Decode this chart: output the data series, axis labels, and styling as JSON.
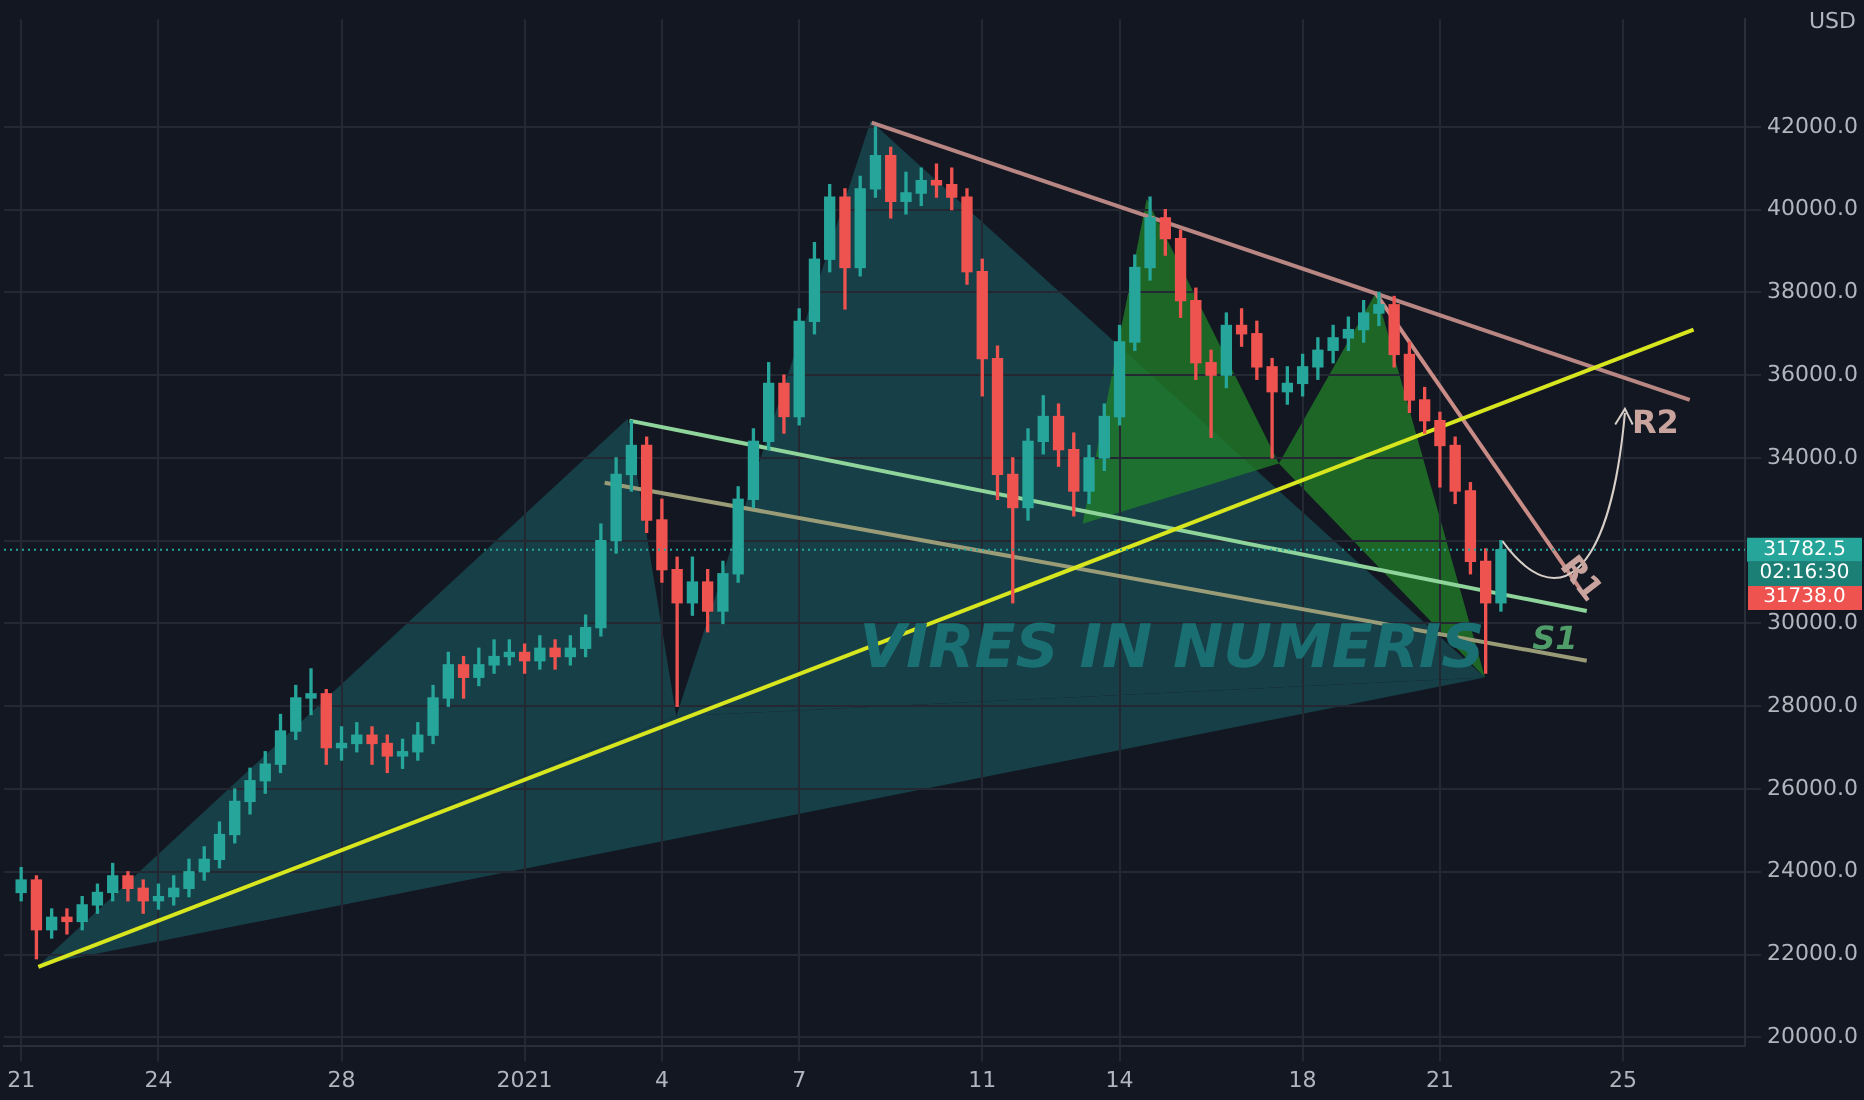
{
  "chart_data": {
    "type": "candlestick",
    "x": [
      "2020-12-21T00:00",
      "2020-12-21T08:00",
      "2020-12-21T16:00",
      "2020-12-22T00:00",
      "2020-12-22T08:00",
      "2020-12-22T16:00",
      "2020-12-23T00:00",
      "2020-12-23T08:00",
      "2020-12-23T16:00",
      "2020-12-24T00:00",
      "2020-12-24T08:00",
      "2020-12-24T16:00",
      "2020-12-25T00:00",
      "2020-12-25T08:00",
      "2020-12-25T16:00",
      "2020-12-26T00:00",
      "2020-12-26T08:00",
      "2020-12-26T16:00",
      "2020-12-27T00:00",
      "2020-12-27T08:00",
      "2020-12-27T16:00",
      "2020-12-28T00:00",
      "2020-12-28T08:00",
      "2020-12-28T16:00",
      "2020-12-29T00:00",
      "2020-12-29T08:00",
      "2020-12-29T16:00",
      "2020-12-30T00:00",
      "2020-12-30T08:00",
      "2020-12-30T16:00",
      "2020-12-31T00:00",
      "2020-12-31T08:00",
      "2020-12-31T16:00",
      "2021-01-01T00:00",
      "2021-01-01T08:00",
      "2021-01-01T16:00",
      "2021-01-02T00:00",
      "2021-01-02T08:00",
      "2021-01-02T16:00",
      "2021-01-03T00:00",
      "2021-01-03T08:00",
      "2021-01-03T16:00",
      "2021-01-04T00:00",
      "2021-01-04T08:00",
      "2021-01-04T16:00",
      "2021-01-05T00:00",
      "2021-01-05T08:00",
      "2021-01-05T16:00",
      "2021-01-06T00:00",
      "2021-01-06T08:00",
      "2021-01-06T16:00",
      "2021-01-07T00:00",
      "2021-01-07T08:00",
      "2021-01-07T16:00",
      "2021-01-08T00:00",
      "2021-01-08T08:00",
      "2021-01-08T16:00",
      "2021-01-09T00:00",
      "2021-01-09T08:00",
      "2021-01-09T16:00",
      "2021-01-10T00:00",
      "2021-01-10T08:00",
      "2021-01-10T16:00",
      "2021-01-11T00:00",
      "2021-01-11T08:00",
      "2021-01-11T16:00",
      "2021-01-12T00:00",
      "2021-01-12T08:00",
      "2021-01-12T16:00",
      "2021-01-13T00:00",
      "2021-01-13T08:00",
      "2021-01-13T16:00",
      "2021-01-14T00:00",
      "2021-01-14T08:00",
      "2021-01-14T16:00",
      "2021-01-15T00:00",
      "2021-01-15T08:00",
      "2021-01-15T16:00",
      "2021-01-16T00:00",
      "2021-01-16T08:00",
      "2021-01-16T16:00",
      "2021-01-17T00:00",
      "2021-01-17T08:00",
      "2021-01-17T16:00",
      "2021-01-18T00:00",
      "2021-01-18T08:00",
      "2021-01-18T16:00",
      "2021-01-19T00:00",
      "2021-01-19T08:00",
      "2021-01-19T16:00",
      "2021-01-20T00:00",
      "2021-01-20T08:00",
      "2021-01-20T16:00",
      "2021-01-21T00:00",
      "2021-01-21T08:00",
      "2021-01-21T16:00",
      "2021-01-22T00:00",
      "2021-01-22T08:00"
    ],
    "ohlc": [
      [
        23500,
        24100,
        23300,
        23800
      ],
      [
        23800,
        23900,
        21900,
        22600
      ],
      [
        22600,
        23100,
        22400,
        22900
      ],
      [
        22900,
        23100,
        22500,
        22800
      ],
      [
        22800,
        23400,
        22600,
        23200
      ],
      [
        23200,
        23700,
        23000,
        23500
      ],
      [
        23500,
        24200,
        23300,
        23900
      ],
      [
        23900,
        24000,
        23300,
        23600
      ],
      [
        23600,
        23800,
        23000,
        23300
      ],
      [
        23300,
        23700,
        23100,
        23400
      ],
      [
        23400,
        23900,
        23200,
        23600
      ],
      [
        23600,
        24300,
        23400,
        24000
      ],
      [
        24000,
        24600,
        23800,
        24300
      ],
      [
        24300,
        25200,
        24100,
        24900
      ],
      [
        24900,
        26000,
        24700,
        25700
      ],
      [
        25700,
        26500,
        25400,
        26200
      ],
      [
        26200,
        26900,
        25900,
        26600
      ],
      [
        26600,
        27800,
        26400,
        27400
      ],
      [
        27400,
        28500,
        27200,
        28200
      ],
      [
        28200,
        28900,
        27800,
        28300
      ],
      [
        28300,
        28400,
        26600,
        27000
      ],
      [
        27000,
        27500,
        26700,
        27100
      ],
      [
        27100,
        27600,
        26900,
        27300
      ],
      [
        27300,
        27500,
        26600,
        27100
      ],
      [
        27100,
        27300,
        26400,
        26800
      ],
      [
        26800,
        27200,
        26500,
        26900
      ],
      [
        26900,
        27600,
        26700,
        27300
      ],
      [
        27300,
        28500,
        27100,
        28200
      ],
      [
        28200,
        29300,
        28000,
        29000
      ],
      [
        29000,
        29200,
        28200,
        28700
      ],
      [
        28700,
        29400,
        28500,
        29000
      ],
      [
        29000,
        29600,
        28800,
        29200
      ],
      [
        29200,
        29600,
        29000,
        29300
      ],
      [
        29300,
        29500,
        28800,
        29100
      ],
      [
        29100,
        29700,
        28900,
        29400
      ],
      [
        29400,
        29600,
        28900,
        29200
      ],
      [
        29200,
        29700,
        29000,
        29400
      ],
      [
        29400,
        30200,
        29200,
        29900
      ],
      [
        29900,
        32400,
        29700,
        32000
      ],
      [
        32000,
        34000,
        31700,
        33600
      ],
      [
        33600,
        34900,
        33200,
        34300
      ],
      [
        34300,
        34500,
        32200,
        32500
      ],
      [
        32500,
        33000,
        31000,
        31300
      ],
      [
        31300,
        31600,
        28000,
        30500
      ],
      [
        30500,
        31600,
        30200,
        31000
      ],
      [
        31000,
        31300,
        29800,
        30300
      ],
      [
        30300,
        31500,
        30000,
        31200
      ],
      [
        31200,
        33300,
        31000,
        33000
      ],
      [
        33000,
        34700,
        32800,
        34400
      ],
      [
        34400,
        36300,
        34200,
        35800
      ],
      [
        35800,
        36000,
        34600,
        35000
      ],
      [
        35000,
        37600,
        34800,
        37300
      ],
      [
        37300,
        39200,
        37000,
        38800
      ],
      [
        38800,
        40600,
        38500,
        40300
      ],
      [
        40300,
        40500,
        37600,
        38600
      ],
      [
        38600,
        40800,
        38400,
        40500
      ],
      [
        40500,
        42000,
        40300,
        41300
      ],
      [
        41300,
        41500,
        39800,
        40200
      ],
      [
        40200,
        40900,
        39900,
        40400
      ],
      [
        40400,
        41000,
        40100,
        40700
      ],
      [
        40700,
        41100,
        40300,
        40600
      ],
      [
        40600,
        41000,
        40000,
        40300
      ],
      [
        40300,
        40500,
        38200,
        38500
      ],
      [
        38500,
        38800,
        35500,
        36400
      ],
      [
        36400,
        36700,
        33000,
        33600
      ],
      [
        33600,
        34000,
        30500,
        32800
      ],
      [
        32800,
        34700,
        32500,
        34400
      ],
      [
        34400,
        35500,
        34100,
        35000
      ],
      [
        35000,
        35300,
        33800,
        34200
      ],
      [
        34200,
        34600,
        32600,
        33200
      ],
      [
        33200,
        34300,
        32900,
        34000
      ],
      [
        34000,
        35300,
        33700,
        35000
      ],
      [
        35000,
        37200,
        34800,
        36800
      ],
      [
        36800,
        38900,
        36600,
        38600
      ],
      [
        38600,
        40300,
        38300,
        39800
      ],
      [
        39800,
        40000,
        38900,
        39300
      ],
      [
        39300,
        39500,
        37400,
        37800
      ],
      [
        37800,
        38100,
        35900,
        36300
      ],
      [
        36300,
        36600,
        34500,
        36000
      ],
      [
        36000,
        37500,
        35700,
        37200
      ],
      [
        37200,
        37600,
        36700,
        37000
      ],
      [
        37000,
        37300,
        35900,
        36200
      ],
      [
        36200,
        36400,
        34000,
        35600
      ],
      [
        35600,
        36200,
        35300,
        35800
      ],
      [
        35800,
        36500,
        35500,
        36200
      ],
      [
        36200,
        36900,
        35900,
        36600
      ],
      [
        36600,
        37200,
        36300,
        36900
      ],
      [
        36900,
        37400,
        36600,
        37100
      ],
      [
        37100,
        37800,
        36800,
        37500
      ],
      [
        37500,
        38000,
        37200,
        37700
      ],
      [
        37700,
        37900,
        36200,
        36500
      ],
      [
        36500,
        36800,
        35100,
        35400
      ],
      [
        35400,
        35700,
        34600,
        34900
      ],
      [
        34900,
        35100,
        33300,
        34300
      ],
      [
        34300,
        34500,
        32900,
        33200
      ],
      [
        33200,
        33400,
        31200,
        31500
      ],
      [
        31500,
        31800,
        28800,
        30500
      ],
      [
        30500,
        32000,
        30300,
        31782.5
      ]
    ],
    "colors": [
      "#26a69a",
      "#ef5350",
      "#26a69a",
      "#ef5350",
      "#26a69a",
      "#26a69a",
      "#26a69a",
      "#ef5350",
      "#ef5350",
      "#26a69a",
      "#26a69a",
      "#26a69a",
      "#26a69a",
      "#26a69a",
      "#26a69a",
      "#26a69a",
      "#26a69a",
      "#26a69a",
      "#26a69a",
      "#26a69a",
      "#ef5350",
      "#26a69a",
      "#26a69a",
      "#ef5350",
      "#ef5350",
      "#26a69a",
      "#26a69a",
      "#26a69a",
      "#26a69a",
      "#ef5350",
      "#26a69a",
      "#26a69a",
      "#26a69a",
      "#ef5350",
      "#26a69a",
      "#ef5350",
      "#26a69a",
      "#26a69a",
      "#26a69a",
      "#26a69a",
      "#26a69a",
      "#ef5350",
      "#ef5350",
      "#ef5350",
      "#26a69a",
      "#ef5350",
      "#26a69a",
      "#26a69a",
      "#26a69a",
      "#26a69a",
      "#ef5350",
      "#26a69a",
      "#26a69a",
      "#26a69a",
      "#ef5350",
      "#26a69a",
      "#26a69a",
      "#ef5350",
      "#26a69a",
      "#26a69a",
      "#ef5350",
      "#ef5350",
      "#ef5350",
      "#ef5350",
      "#ef5350",
      "#ef5350",
      "#26a69a",
      "#26a69a",
      "#ef5350",
      "#ef5350",
      "#26a69a",
      "#26a69a",
      "#26a69a",
      "#26a69a",
      "#26a69a",
      "#ef5350",
      "#ef5350",
      "#ef5350",
      "#ef5350",
      "#26a69a",
      "#ef5350",
      "#ef5350",
      "#ef5350",
      "#26a69a",
      "#26a69a",
      "#26a69a",
      "#26a69a",
      "#26a69a",
      "#26a69a",
      "#26a69a",
      "#ef5350",
      "#ef5350",
      "#ef5350",
      "#ef5350",
      "#ef5350",
      "#ef5350",
      "#ef5350",
      "#26a69a"
    ],
    "series": [
      {
        "type": "line",
        "color": "#d7e61f",
        "x": [
          "2020-12-21T09:00",
          "2021-01-26T13:00"
        ],
        "values": [
          21700,
          37100
        ]
      },
      {
        "type": "line",
        "color": "#b98783",
        "x": [
          "2021-01-08T14:00",
          "2021-01-26T11:00"
        ],
        "values": [
          42100,
          35400
        ]
      },
      {
        "type": "line",
        "color": "#c98c86",
        "x": [
          "2021-01-19T14:00",
          "2021-01-24T05:00"
        ],
        "values": [
          38000,
          30600
        ]
      },
      {
        "type": "line",
        "color": "#8fd49a",
        "x": [
          "2021-01-03T07:00",
          "2021-01-24T05:00"
        ],
        "values": [
          34900,
          30300
        ]
      },
      {
        "type": "line",
        "color": "#9a9c78",
        "x": [
          "2021-01-02T18:00",
          "2021-01-24T05:00"
        ],
        "values": [
          33400,
          29100
        ]
      }
    ],
    "xlim": [
      "2020-12-20T15:00",
      "2021-01-27T16:00"
    ],
    "xticks": [
      {
        "value": "2020-12-21",
        "label": "21"
      },
      {
        "value": "2020-12-24",
        "label": "24"
      },
      {
        "value": "2020-12-28",
        "label": "28"
      },
      {
        "value": "2021-01-01",
        "label": "2021"
      },
      {
        "value": "2021-01-04",
        "label": "4"
      },
      {
        "value": "2021-01-07",
        "label": "7"
      },
      {
        "value": "2021-01-11",
        "label": "11"
      },
      {
        "value": "2021-01-14",
        "label": "14"
      },
      {
        "value": "2021-01-18",
        "label": "18"
      },
      {
        "value": "2021-01-21",
        "label": "21"
      },
      {
        "value": "2021-01-25",
        "label": "25"
      }
    ],
    "ylim": [
      19800,
      44600
    ],
    "yticks": [
      {
        "value": 20000,
        "label": "20000.0"
      },
      {
        "value": 22000,
        "label": "22000.0"
      },
      {
        "value": 24000,
        "label": "24000.0"
      },
      {
        "value": 26000,
        "label": "26000.0"
      },
      {
        "value": 28000,
        "label": "28000.0"
      },
      {
        "value": 30000,
        "label": "30000.0"
      },
      {
        "value": 32000,
        "label": null
      },
      {
        "value": 34000,
        "label": "34000.0"
      },
      {
        "value": 36000,
        "label": "36000.0"
      },
      {
        "value": 38000,
        "label": "38000.0"
      },
      {
        "value": 40000,
        "label": "40000.0"
      },
      {
        "value": 42000,
        "label": "42000.0"
      }
    ],
    "ylabel": "USD",
    "grid": true,
    "marker": "none",
    "ref_lines": [
      {
        "axis": "y",
        "value": 31782.5,
        "label": "31782.5",
        "color": "#26a69a",
        "line_style": "dotted"
      }
    ],
    "annotations": [
      "02:16:30",
      "31738.0",
      {
        "text": "R2",
        "x": "2021-01-25T17:00",
        "y": 35680
      },
      {
        "text": "R1",
        "x": "2021-01-24T02:00",
        "y": 31090
      },
      "S1",
      "VIRES IN NUMERIS"
    ]
  }
}
